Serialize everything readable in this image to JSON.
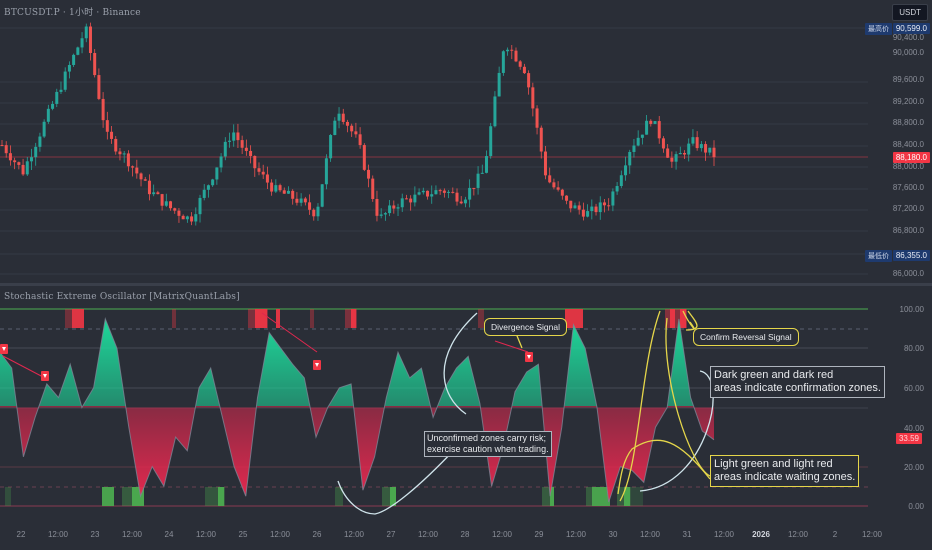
{
  "header": {
    "symbol_title": "BTCUSDT.P · 1小时 · Binance",
    "currency_badge": "USDT"
  },
  "price_axis": {
    "ticks": [
      "90,400.0",
      "90,000.0",
      "89,600.0",
      "89,200.0",
      "88,800.0",
      "88,400.0",
      "88,000.0",
      "87,600.0",
      "87,200.0",
      "86,800.0",
      "86,000.0"
    ],
    "high_label": "最高价",
    "high_value": "90,599.0",
    "low_label": "最低价",
    "low_value": "86,355.0",
    "last_price": "88,180.0"
  },
  "oscillator": {
    "title": "Stochastic Extreme Oscillator [MatrixQuantLabs]",
    "ticks": [
      "100.00",
      "80.00",
      "60.00",
      "40.00",
      "20.00",
      "0.00"
    ],
    "current_value": "33.59"
  },
  "time_axis": {
    "labels": [
      "22",
      "12:00",
      "23",
      "12:00",
      "24",
      "12:00",
      "25",
      "12:00",
      "26",
      "12:00",
      "27",
      "12:00",
      "28",
      "12:00",
      "29",
      "12:00",
      "30",
      "12:00",
      "31",
      "12:00",
      "2026",
      "12:00",
      "2",
      "12:00"
    ]
  },
  "annotations": {
    "divergence": "Divergence Signal",
    "confirm_reversal": "Confirm Reversal Signal",
    "dark_zones": "Dark green and dark red areas indicate confirmation zones.",
    "dark_zones_line1": "Dark green and dark red",
    "dark_zones_line2": "areas indicate confirmation zones.",
    "unconfirmed_line1": "Unconfirmed zones carry risk;",
    "unconfirmed_line2": "exercise caution when trading.",
    "light_zones_line1": "Light green and light red",
    "light_zones_line2": "areas indicate waiting zones."
  },
  "colors": {
    "background": "#2a2e37",
    "up_candle": "#26a69a",
    "down_candle": "#ef5350",
    "osc_green": "#1ec98a",
    "osc_red": "#e0284f",
    "signal_red": "#f23645",
    "signal_green": "#4caf50",
    "callout_yellow": "#e5d64a"
  },
  "chart_data": [
    {
      "type": "candlestick",
      "title": "BTCUSDT.P · 1小时 · Binance",
      "ylabel": "USDT",
      "ylim": [
        85900,
        90650
      ],
      "y_ticks": [
        86000,
        86800,
        87200,
        87600,
        88000,
        88400,
        88800,
        89200,
        89600,
        90000,
        90400
      ],
      "high": 90599.0,
      "low": 86355.0,
      "last": 88180.0,
      "x": [
        "22",
        "12:00",
        "23",
        "12:00",
        "24",
        "12:00",
        "25",
        "12:00",
        "26",
        "12:00",
        "27",
        "12:00",
        "28",
        "12:00",
        "29",
        "12:00",
        "30",
        "12:00",
        "31"
      ],
      "approx_close_path": [
        88350,
        87900,
        88700,
        89500,
        90300,
        88500,
        88100,
        87600,
        87300,
        87100,
        87800,
        88600,
        88000,
        87600,
        87450,
        87200,
        89000,
        88400,
        87100,
        87400,
        87500,
        87600,
        87450,
        87900,
        90100,
        89600,
        87800,
        87350,
        87200,
        87400,
        88300,
        88800,
        88050,
        88400,
        88180
      ],
      "grid": true
    },
    {
      "type": "area",
      "title": "Stochastic Extreme Oscillator [MatrixQuantLabs]",
      "ylim": [
        0,
        100
      ],
      "y_ticks": [
        0,
        20,
        40,
        60,
        80,
        100
      ],
      "levels": {
        "overbought": 90,
        "oversold": 10,
        "upper": 100,
        "lower": 0
      },
      "current": 33.59,
      "approx_values": [
        78,
        70,
        25,
        45,
        62,
        55,
        72,
        50,
        60,
        95,
        80,
        40,
        5,
        20,
        10,
        35,
        28,
        60,
        70,
        45,
        20,
        5,
        55,
        88,
        80,
        72,
        65,
        35,
        50,
        60,
        62,
        8,
        25,
        55,
        78,
        65,
        70,
        45,
        60,
        70,
        76,
        52,
        10,
        30,
        58,
        68,
        72,
        5,
        40,
        92,
        80,
        50,
        2,
        20,
        18,
        12,
        40,
        50,
        95,
        55,
        38,
        33.59
      ],
      "legend": [
        "Divergence Signal",
        "Confirm Reversal Signal"
      ],
      "grid": true
    }
  ]
}
